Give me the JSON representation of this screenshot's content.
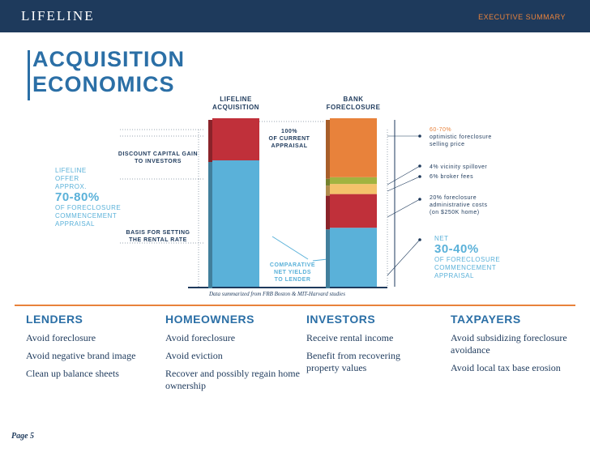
{
  "header": {
    "brand": "LIFELINE",
    "section": "EXECUTIVE SUMMARY"
  },
  "title": {
    "line1": "ACQUISITION",
    "line2": "ECONOMICS"
  },
  "chart_data": {
    "type": "bar",
    "stacked": true,
    "categories": [
      "LIFELINE ACQUISITION",
      "BANK FORECLOSURE"
    ],
    "series": [
      {
        "bar": "LIFELINE ACQUISITION",
        "segments": [
          {
            "label": "BASIS FOR SETTING THE RENTAL RATE",
            "value": 75,
            "color": "#5ab1d9"
          },
          {
            "label": "DISCOUNT CAPITAL GAIN TO INVESTORS",
            "value": 25,
            "color": "#c0303a"
          }
        ]
      },
      {
        "bar": "BANK FORECLOSURE",
        "segments": [
          {
            "label": "NET 30-40% OF FORECLOSURE COMMENCEMENT APPRAISAL",
            "value": 35,
            "color": "#5ab1d9"
          },
          {
            "label": "20% foreclosure administrative costs (on $250K home)",
            "value": 20,
            "color": "#c0303a"
          },
          {
            "label": "6% broker fees",
            "value": 6,
            "color": "#f4c26b"
          },
          {
            "label": "4% vicinity spillover",
            "value": 4,
            "color": "#a1b340"
          },
          {
            "label": "60-70% optimistic foreclosure selling price",
            "value": 35,
            "color": "#e8823b"
          }
        ]
      }
    ],
    "ylim": [
      0,
      100
    ]
  },
  "labels": {
    "col1_line1": "LIFELINE",
    "col1_line2": "ACQUISITION",
    "col2_line1": "BANK",
    "col2_line2": "FORECLOSURE",
    "current_l1": "100%",
    "current_l2": "OF CURRENT",
    "current_l3": "APPRAISAL",
    "discount_l1": "DISCOUNT CAPITAL GAIN",
    "discount_l2": "TO INVESTORS",
    "offer_l1": "LIFELINE",
    "offer_l2": "OFFER",
    "offer_l3": "APPROX.",
    "offer_big": "70-80%",
    "offer_l4": "OF FORECLOSURE",
    "offer_l5": "COMMENCEMENT",
    "offer_l6": "APPRAISAL",
    "basis_l1": "BASIS FOR SETTING",
    "basis_l2": "THE RENTAL RATE",
    "comp_l1": "COMPARATIVE",
    "comp_l2": "NET YIELDS",
    "comp_l3": "TO LENDER",
    "sell_l1": "60-70%",
    "sell_l2": "optimistic foreclosure",
    "sell_l3": "selling price",
    "spill": "4% vicinity spillover",
    "broker": "6% broker fees",
    "admin_l1": "20% foreclosure",
    "admin_l2": "administrative costs",
    "admin_l3": "(on $250K home)",
    "net_l1": "NET",
    "net_big": "30-40%",
    "net_l2": "OF FORECLOSURE",
    "net_l3": "COMMENCEMENT",
    "net_l4": "APPRAISAL"
  },
  "source": "Data summarized from FRB Boston & MIT-Harvard studies",
  "groups": [
    {
      "title": "LENDERS",
      "items": [
        "Avoid foreclosure",
        "Avoid negative brand image",
        "Clean up balance sheets"
      ]
    },
    {
      "title": "HOMEOWNERS",
      "items": [
        "Avoid foreclosure",
        "Avoid eviction",
        "Recover and possibly regain home ownership"
      ]
    },
    {
      "title": "INVESTORS",
      "items": [
        "Receive rental income",
        "Benefit from recovering property values"
      ]
    },
    {
      "title": "TAXPAYERS",
      "items": [
        "Avoid subsidizing foreclosure avoidance",
        "Avoid local tax base erosion"
      ]
    }
  ],
  "page": "Page 5"
}
